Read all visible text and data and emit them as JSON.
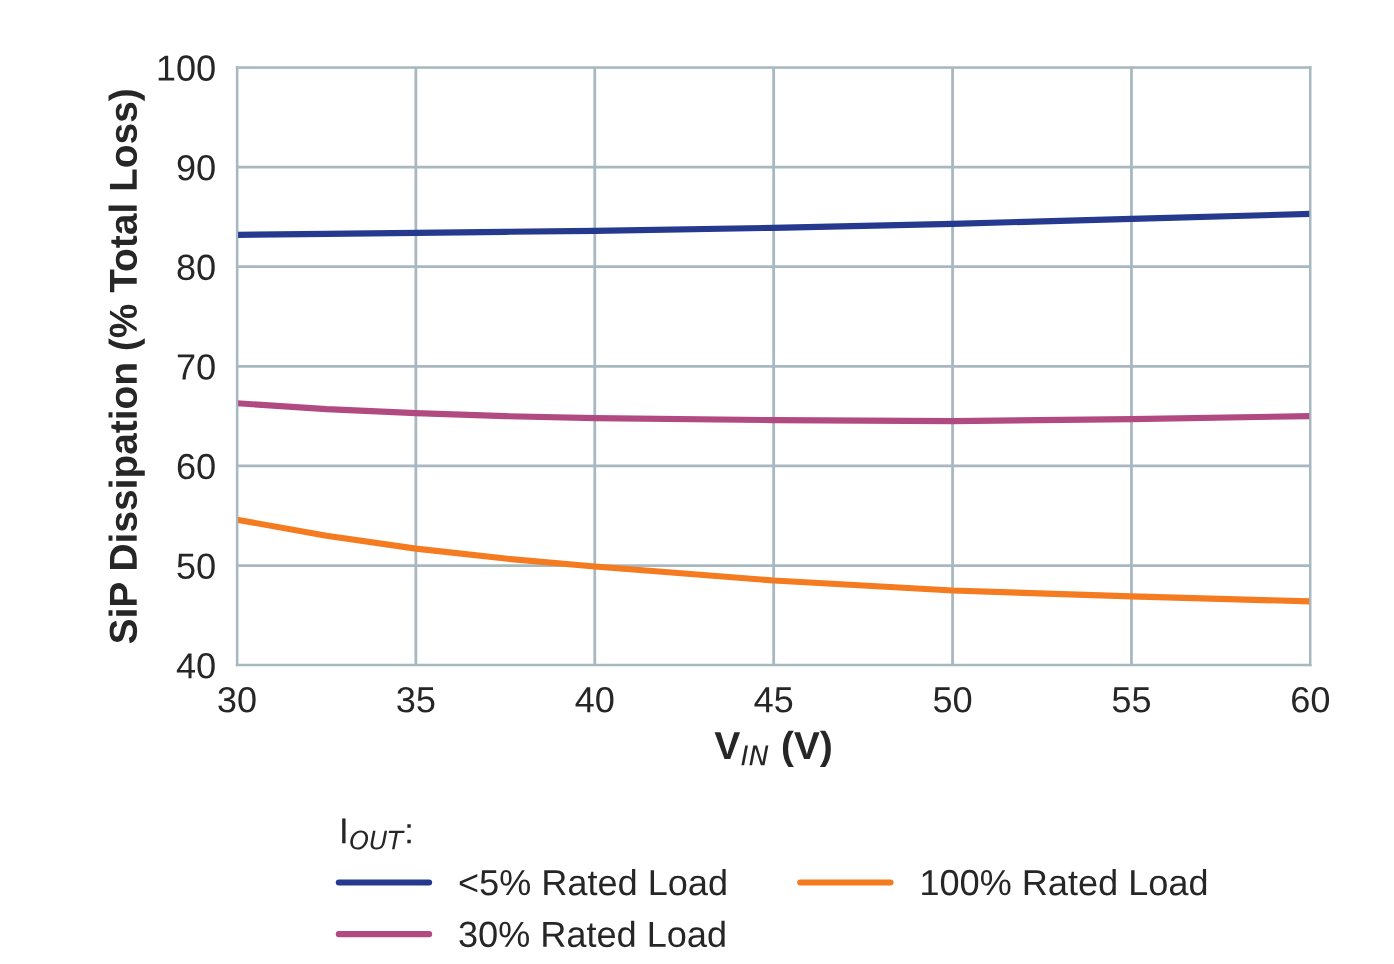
{
  "chart_data": {
    "type": "line",
    "xlabel": "V$_{IN}$ (V)",
    "ylabel": "SiP Dissipation (% Total Loss)",
    "legend_title": "I$_{OUT}$:",
    "x": [
      30,
      32.5,
      35,
      37.5,
      40,
      45,
      50,
      55,
      60
    ],
    "series": [
      {
        "name": "<5% Rated Load",
        "color": "#253a8e",
        "values": [
          83.2,
          83.3,
          83.4,
          83.5,
          83.6,
          83.9,
          84.3,
          84.8,
          85.3
        ]
      },
      {
        "name": "30% Rated Load",
        "color": "#b24a82",
        "values": [
          66.3,
          65.7,
          65.3,
          65.0,
          64.8,
          64.6,
          64.5,
          64.7,
          65.0
        ]
      },
      {
        "name": "100% Rated Load",
        "color": "#f47b20",
        "values": [
          54.6,
          53.0,
          51.7,
          50.7,
          49.9,
          48.5,
          47.5,
          46.9,
          46.4
        ]
      }
    ],
    "xlim": [
      30,
      60
    ],
    "xticks": [
      30,
      35,
      40,
      45,
      50,
      55,
      60
    ],
    "ylim": [
      40,
      100
    ],
    "yticks": [
      40,
      50,
      60,
      70,
      80,
      90,
      100
    ],
    "grid": true,
    "legend": "bottom",
    "line_style": "solid"
  }
}
